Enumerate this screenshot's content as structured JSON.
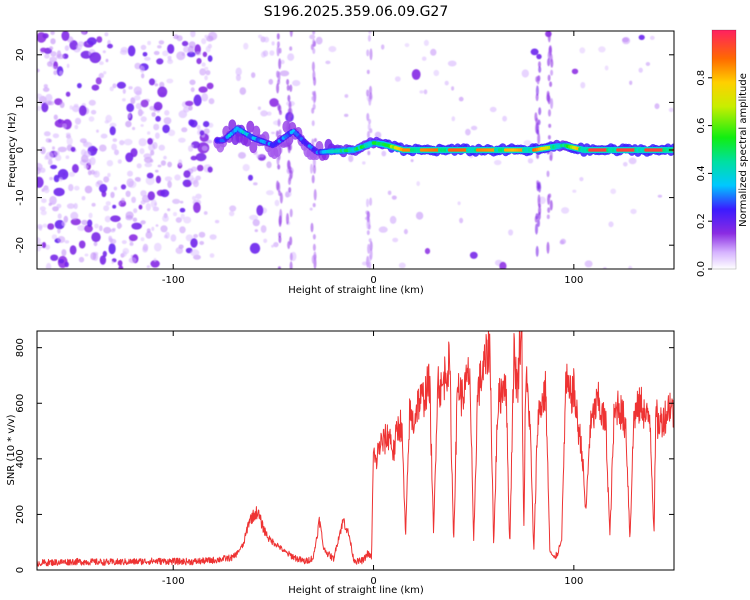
{
  "title": "S196.2025.359.06.09.G27",
  "colors": {
    "line": "#ee3333",
    "frame": "#000000",
    "background": "#ffffff"
  },
  "chart_data": [
    {
      "type": "heatmap",
      "name": "spectrogram",
      "xlabel": "Height of straight line (km)",
      "ylabel": "Frequency (Hz)",
      "xlim": [
        -168,
        150
      ],
      "ylim": [
        -25,
        25
      ],
      "xticks": [
        {
          "value": -100,
          "label": "-100"
        },
        {
          "value": 0,
          "label": "0"
        },
        {
          "value": 100,
          "label": "100"
        }
      ],
      "yticks": [
        {
          "value": -20,
          "label": "-20"
        },
        {
          "value": -10,
          "label": "-10"
        },
        {
          "value": 0,
          "label": "0"
        },
        {
          "value": 10,
          "label": "10"
        },
        {
          "value": 20,
          "label": "20"
        }
      ],
      "signal_track": [
        {
          "x": -75,
          "f": 2.0,
          "v": 0.3
        },
        {
          "x": -68,
          "f": 4.5,
          "v": 0.45
        },
        {
          "x": -60,
          "f": 2.5,
          "v": 0.35
        },
        {
          "x": -50,
          "f": 1.0,
          "v": 0.3
        },
        {
          "x": -40,
          "f": 4.0,
          "v": 0.35
        },
        {
          "x": -34,
          "f": 1.5,
          "v": 0.3
        },
        {
          "x": -28,
          "f": -0.5,
          "v": 0.3
        },
        {
          "x": -22,
          "f": -0.3,
          "v": 0.45
        },
        {
          "x": -10,
          "f": 0.0,
          "v": 0.5
        },
        {
          "x": 0,
          "f": 1.5,
          "v": 0.5
        },
        {
          "x": 5,
          "f": 1.2,
          "v": 0.55
        },
        {
          "x": 15,
          "f": 0.0,
          "v": 0.85
        },
        {
          "x": 25,
          "f": 0.0,
          "v": 0.85
        },
        {
          "x": 40,
          "f": 0.0,
          "v": 0.9
        },
        {
          "x": 55,
          "f": 0.0,
          "v": 0.85
        },
        {
          "x": 70,
          "f": 0.0,
          "v": 0.8
        },
        {
          "x": 80,
          "f": 0.0,
          "v": 0.9
        },
        {
          "x": 95,
          "f": 1.0,
          "v": 0.45
        },
        {
          "x": 105,
          "f": 0.0,
          "v": 0.95
        },
        {
          "x": 120,
          "f": 0.0,
          "v": 0.95
        },
        {
          "x": 140,
          "f": 0.0,
          "v": 0.95
        }
      ],
      "colorbar": {
        "label": "Normalized spectral amplitude",
        "range": [
          0,
          1
        ],
        "ticks": [
          {
            "value": 0.0,
            "label": "0.0"
          },
          {
            "value": 0.2,
            "label": "0.2"
          },
          {
            "value": 0.4,
            "label": "0.4"
          },
          {
            "value": 0.6,
            "label": "0.6"
          },
          {
            "value": 0.8,
            "label": "0.8"
          }
        ]
      }
    },
    {
      "type": "line",
      "name": "snr",
      "xlabel": "Height of straight line (km)",
      "ylabel": "SNR (10 * v/v)",
      "xlim": [
        -168,
        150
      ],
      "ylim": [
        0,
        860
      ],
      "xticks": [
        {
          "value": -100,
          "label": "-100"
        },
        {
          "value": 0,
          "label": "0"
        },
        {
          "value": 100,
          "label": "100"
        }
      ],
      "yticks": [
        {
          "value": 0,
          "label": "0"
        },
        {
          "value": 200,
          "label": "200"
        },
        {
          "value": 400,
          "label": "400"
        },
        {
          "value": 600,
          "label": "600"
        },
        {
          "value": 800,
          "label": "800"
        }
      ],
      "series": [
        {
          "name": "SNR",
          "x": [
            -168,
            -150,
            -130,
            -110,
            -90,
            -80,
            -70,
            -65,
            -62,
            -58,
            -55,
            -52,
            -48,
            -45,
            -42,
            -38,
            -34,
            -30,
            -27,
            -25,
            -23,
            -20,
            -17,
            -15,
            -12,
            -10,
            -8,
            -5,
            -3,
            -1,
            0,
            1,
            3,
            5,
            8,
            10,
            12,
            14,
            16,
            18,
            20,
            22,
            25,
            28,
            30,
            32,
            34,
            36,
            38,
            40,
            42,
            44,
            46,
            48,
            50,
            52,
            54,
            56,
            58,
            60,
            62,
            64,
            66,
            68,
            70,
            72,
            73,
            74,
            75,
            76,
            77,
            78,
            80,
            82,
            84,
            86,
            88,
            90,
            92,
            94,
            96,
            98,
            100,
            102,
            104,
            106,
            108,
            110,
            112,
            114,
            116,
            118,
            120,
            122,
            124,
            126,
            128,
            130,
            132,
            134,
            136,
            138,
            140,
            141,
            142,
            144,
            146,
            148,
            150
          ],
          "values": [
            25,
            30,
            28,
            32,
            30,
            35,
            45,
            90,
            180,
            210,
            150,
            110,
            90,
            70,
            55,
            40,
            30,
            45,
            180,
            80,
            60,
            40,
            130,
            180,
            120,
            40,
            30,
            35,
            60,
            45,
            430,
            380,
            450,
            460,
            490,
            420,
            510,
            530,
            120,
            560,
            530,
            600,
            620,
            680,
            120,
            690,
            640,
            720,
            740,
            100,
            680,
            620,
            660,
            720,
            90,
            640,
            700,
            750,
            820,
            80,
            590,
            650,
            700,
            80,
            780,
            650,
            830,
            860,
            120,
            700,
            620,
            550,
            60,
            550,
            600,
            650,
            70,
            40,
            60,
            120,
            680,
            620,
            650,
            520,
            440,
            200,
            500,
            560,
            610,
            560,
            520,
            120,
            540,
            600,
            560,
            520,
            110,
            560,
            580,
            600,
            540,
            560,
            130,
            570,
            520,
            540,
            560,
            600,
            560
          ]
        }
      ]
    }
  ]
}
